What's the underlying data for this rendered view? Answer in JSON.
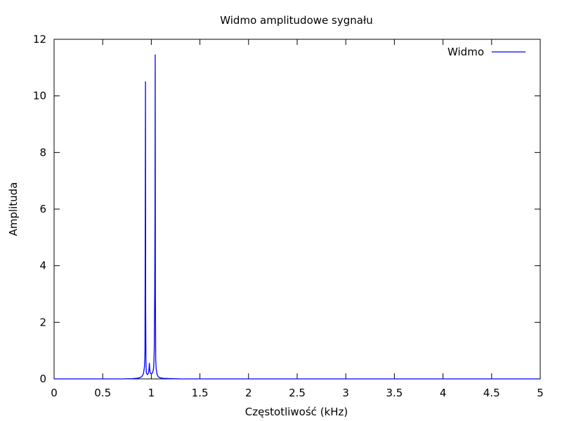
{
  "chart_data": {
    "type": "line",
    "title": "Widmo amplitudowe sygnału",
    "xlabel": "Częstotliwość (kHz)",
    "ylabel": "Amplituda",
    "xlim": [
      0,
      5
    ],
    "ylim": [
      0,
      12
    ],
    "xticks": [
      "0",
      "0.5",
      "1",
      "1.5",
      "2",
      "2.5",
      "3",
      "3.5",
      "4",
      "4.5",
      "5"
    ],
    "yticks": [
      "0",
      "2",
      "4",
      "6",
      "8",
      "10",
      "12"
    ],
    "grid": false,
    "legend_position": "top-right",
    "series": [
      {
        "name": "Widmo",
        "color": "#0000ff",
        "x": [
          0,
          0.5,
          0.7,
          0.8,
          0.85,
          0.88,
          0.9,
          0.91,
          0.92,
          0.93,
          0.935,
          0.94,
          0.942,
          0.945,
          0.948,
          0.95,
          0.96,
          0.97,
          0.975,
          0.98,
          0.985,
          0.99,
          1.0,
          1.01,
          1.02,
          1.025,
          1.03,
          1.035,
          1.038,
          1.04,
          1.042,
          1.045,
          1.05,
          1.06,
          1.07,
          1.09,
          1.12,
          1.2,
          1.3,
          1.5,
          2.0,
          3.0,
          4.0,
          5.0
        ],
        "y": [
          0.0,
          0.0,
          0.0,
          0.01,
          0.02,
          0.04,
          0.08,
          0.12,
          0.2,
          0.45,
          1.0,
          10.5,
          2.5,
          0.6,
          0.3,
          0.2,
          0.15,
          0.2,
          0.3,
          0.55,
          0.3,
          0.2,
          0.18,
          0.2,
          0.3,
          0.45,
          1.0,
          3.0,
          6.0,
          11.45,
          3.0,
          0.7,
          0.35,
          0.15,
          0.08,
          0.04,
          0.02,
          0.01,
          0.0,
          0.0,
          0.0,
          0.0,
          0.0,
          0.0
        ]
      }
    ]
  }
}
